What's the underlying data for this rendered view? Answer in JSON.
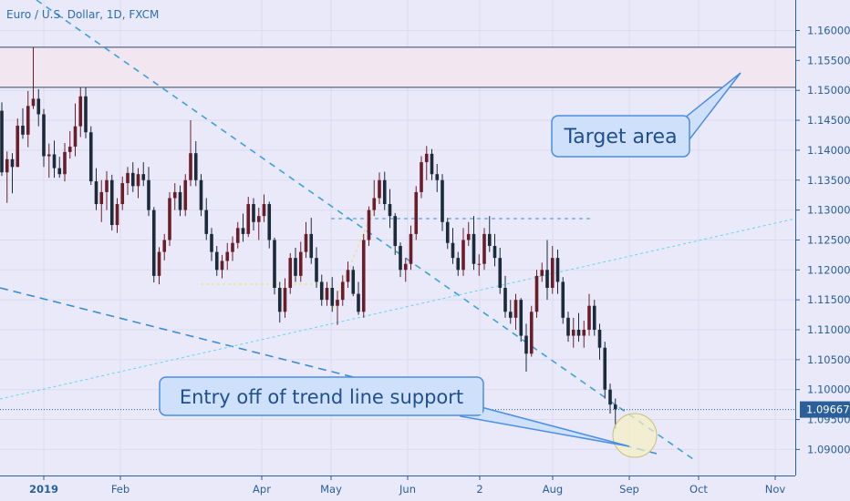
{
  "chart_data": {
    "type": "candlestick",
    "title": "Euro / U.S. Dollar, 1D, FXCM",
    "x_ticks": [
      "2019",
      "Feb",
      "Apr",
      "May",
      "Jun",
      "2",
      "Aug",
      "Sep",
      "Oct",
      "Nov"
    ],
    "y_ticks": [
      "1.16000",
      "1.15500",
      "1.15000",
      "1.14500",
      "1.14000",
      "1.13500",
      "1.13000",
      "1.12500",
      "1.12000",
      "1.11500",
      "1.11000",
      "1.10500",
      "1.10000",
      "1.09500",
      "1.09000"
    ],
    "ylim": [
      1.0855,
      1.1655
    ],
    "current_price": "1.09667",
    "resistance_zone": [
      1.1505,
      1.1572
    ],
    "annotations": {
      "target": "Target area",
      "entry": "Entry off of trend line support"
    },
    "colors": {
      "background": "#e9e9f9",
      "axis_text": "#2a5f9a",
      "bull_candle": "#6a1e2a",
      "bear_candle": "#1c2b3a",
      "trend_line": "#3aa2de",
      "support_line": "#62d8ee",
      "zone_fill": "#f2e6f0",
      "zone_border": "#2e4a6e",
      "callout_fill": "#cfe0fb",
      "callout_border": "#4a8ee6",
      "price_tag": "#2a5f9a",
      "ellipse_fill": "#f7f0c0"
    },
    "candles": [
      [
        1.1466,
        1.148,
        1.1357,
        1.1363
      ],
      [
        1.1363,
        1.1398,
        1.1312,
        1.1385
      ],
      [
        1.1385,
        1.1395,
        1.1328,
        1.1372
      ],
      [
        1.1372,
        1.1453,
        1.1372,
        1.1441
      ],
      [
        1.1441,
        1.147,
        1.1419,
        1.1426
      ],
      [
        1.1426,
        1.1499,
        1.1405,
        1.1474
      ],
      [
        1.1474,
        1.1572,
        1.1469,
        1.1486
      ],
      [
        1.1486,
        1.1502,
        1.144,
        1.146
      ],
      [
        1.146,
        1.1469,
        1.1372,
        1.139
      ],
      [
        1.139,
        1.1411,
        1.1354,
        1.1393
      ],
      [
        1.1393,
        1.1416,
        1.1354,
        1.137
      ],
      [
        1.137,
        1.1389,
        1.1354,
        1.136
      ],
      [
        1.136,
        1.1412,
        1.1348,
        1.1397
      ],
      [
        1.1397,
        1.1432,
        1.1386,
        1.1406
      ],
      [
        1.1406,
        1.1478,
        1.139,
        1.144
      ],
      [
        1.144,
        1.1505,
        1.1422,
        1.149
      ],
      [
        1.149,
        1.1505,
        1.142,
        1.143
      ],
      [
        1.143,
        1.144,
        1.1342,
        1.1348
      ],
      [
        1.1348,
        1.137,
        1.13,
        1.131
      ],
      [
        1.131,
        1.135,
        1.128,
        1.133
      ],
      [
        1.133,
        1.1365,
        1.13,
        1.135
      ],
      [
        1.135,
        1.1359,
        1.1266,
        1.1275
      ],
      [
        1.1275,
        1.132,
        1.1262,
        1.131
      ],
      [
        1.131,
        1.1356,
        1.13,
        1.1345
      ],
      [
        1.1345,
        1.1372,
        1.1325,
        1.1362
      ],
      [
        1.1362,
        1.138,
        1.133,
        1.134
      ],
      [
        1.134,
        1.137,
        1.132,
        1.136
      ],
      [
        1.136,
        1.138,
        1.134,
        1.135
      ],
      [
        1.135,
        1.1372,
        1.129,
        1.13
      ],
      [
        1.13,
        1.1305,
        1.1179,
        1.119
      ],
      [
        1.119,
        1.1238,
        1.1176,
        1.123
      ],
      [
        1.123,
        1.126,
        1.1216,
        1.125
      ],
      [
        1.125,
        1.133,
        1.124,
        1.132
      ],
      [
        1.132,
        1.1345,
        1.13,
        1.133
      ],
      [
        1.133,
        1.1341,
        1.129,
        1.13
      ],
      [
        1.13,
        1.136,
        1.129,
        1.135
      ],
      [
        1.135,
        1.145,
        1.134,
        1.1395
      ],
      [
        1.1395,
        1.1415,
        1.134,
        1.135
      ],
      [
        1.135,
        1.136,
        1.129,
        1.13
      ],
      [
        1.13,
        1.132,
        1.125,
        1.126
      ],
      [
        1.126,
        1.127,
        1.1215,
        1.123
      ],
      [
        1.123,
        1.124,
        1.119,
        1.12
      ],
      [
        1.12,
        1.1225,
        1.1186,
        1.1215
      ],
      [
        1.1215,
        1.1245,
        1.12,
        1.123
      ],
      [
        1.123,
        1.1256,
        1.1215,
        1.1245
      ],
      [
        1.1245,
        1.128,
        1.1236,
        1.127
      ],
      [
        1.127,
        1.1294,
        1.1247,
        1.126
      ],
      [
        1.126,
        1.1322,
        1.1255,
        1.131
      ],
      [
        1.131,
        1.132,
        1.1266,
        1.128
      ],
      [
        1.128,
        1.1304,
        1.125,
        1.129
      ],
      [
        1.129,
        1.1326,
        1.128,
        1.131
      ],
      [
        1.131,
        1.1314,
        1.1236,
        1.125
      ],
      [
        1.125,
        1.1254,
        1.1159,
        1.117
      ],
      [
        1.117,
        1.118,
        1.1112,
        1.113
      ],
      [
        1.113,
        1.1186,
        1.112,
        1.117
      ],
      [
        1.117,
        1.1228,
        1.116,
        1.122
      ],
      [
        1.122,
        1.1237,
        1.118,
        1.119
      ],
      [
        1.119,
        1.1247,
        1.118,
        1.123
      ],
      [
        1.123,
        1.128,
        1.122,
        1.126
      ],
      [
        1.126,
        1.1287,
        1.121,
        1.122
      ],
      [
        1.122,
        1.1238,
        1.117,
        1.118
      ],
      [
        1.118,
        1.1192,
        1.114,
        1.115
      ],
      [
        1.115,
        1.118,
        1.114,
        1.117
      ],
      [
        1.117,
        1.1188,
        1.113,
        1.114
      ],
      [
        1.114,
        1.1165,
        1.1108,
        1.115
      ],
      [
        1.115,
        1.1191,
        1.114,
        1.118
      ],
      [
        1.118,
        1.1214,
        1.117,
        1.12
      ],
      [
        1.12,
        1.1206,
        1.1156,
        1.116
      ],
      [
        1.116,
        1.118,
        1.1125,
        1.113
      ],
      [
        1.113,
        1.126,
        1.112,
        1.125
      ],
      [
        1.125,
        1.1306,
        1.124,
        1.13
      ],
      [
        1.13,
        1.135,
        1.129,
        1.132
      ],
      [
        1.132,
        1.1363,
        1.131,
        1.135
      ],
      [
        1.135,
        1.1364,
        1.13,
        1.131
      ],
      [
        1.131,
        1.1335,
        1.127,
        1.129
      ],
      [
        1.129,
        1.1295,
        1.1225,
        1.124
      ],
      [
        1.124,
        1.1246,
        1.1188,
        1.12
      ],
      [
        1.12,
        1.122,
        1.118,
        1.121
      ],
      [
        1.121,
        1.1274,
        1.12,
        1.126
      ],
      [
        1.126,
        1.134,
        1.125,
        1.133
      ],
      [
        1.133,
        1.139,
        1.132,
        1.138
      ],
      [
        1.138,
        1.1407,
        1.135,
        1.1394
      ],
      [
        1.1394,
        1.1402,
        1.135,
        1.136
      ],
      [
        1.136,
        1.1377,
        1.133,
        1.135
      ],
      [
        1.135,
        1.136,
        1.1265,
        1.128
      ],
      [
        1.128,
        1.1287,
        1.1235,
        1.1245
      ],
      [
        1.1245,
        1.127,
        1.121,
        1.122
      ],
      [
        1.122,
        1.123,
        1.119,
        1.12
      ],
      [
        1.12,
        1.127,
        1.119,
        1.125
      ],
      [
        1.125,
        1.128,
        1.124,
        1.126
      ],
      [
        1.126,
        1.129,
        1.12,
        1.121
      ],
      [
        1.121,
        1.1226,
        1.119,
        1.121
      ],
      [
        1.121,
        1.127,
        1.12,
        1.126
      ],
      [
        1.126,
        1.129,
        1.123,
        1.124
      ],
      [
        1.124,
        1.126,
        1.1206,
        1.122
      ],
      [
        1.122,
        1.1237,
        1.116,
        1.117
      ],
      [
        1.117,
        1.119,
        1.112,
        1.113
      ],
      [
        1.113,
        1.115,
        1.111,
        1.112
      ],
      [
        1.112,
        1.116,
        1.11,
        1.115
      ],
      [
        1.115,
        1.1153,
        1.108,
        1.109
      ],
      [
        1.109,
        1.111,
        1.103,
        1.106
      ],
      [
        1.106,
        1.114,
        1.1055,
        1.113
      ],
      [
        1.113,
        1.12,
        1.112,
        1.119
      ],
      [
        1.119,
        1.1212,
        1.118,
        1.12
      ],
      [
        1.12,
        1.125,
        1.115,
        1.117
      ],
      [
        1.117,
        1.124,
        1.116,
        1.122
      ],
      [
        1.122,
        1.1234,
        1.116,
        1.118
      ],
      [
        1.118,
        1.1188,
        1.111,
        1.112
      ],
      [
        1.112,
        1.113,
        1.108,
        1.109
      ],
      [
        1.109,
        1.112,
        1.107,
        1.11
      ],
      [
        1.11,
        1.1128,
        1.108,
        1.109
      ],
      [
        1.109,
        1.1115,
        1.107,
        1.11
      ],
      [
        1.11,
        1.116,
        1.109,
        1.114
      ],
      [
        1.114,
        1.115,
        1.109,
        1.11
      ],
      [
        1.11,
        1.111,
        1.105,
        1.107
      ],
      [
        1.107,
        1.108,
        1.0985,
        1.1
      ],
      [
        1.1,
        1.101,
        1.096,
        1.0975
      ],
      [
        1.0975,
        1.0985,
        1.0935,
        1.0967
      ]
    ]
  }
}
